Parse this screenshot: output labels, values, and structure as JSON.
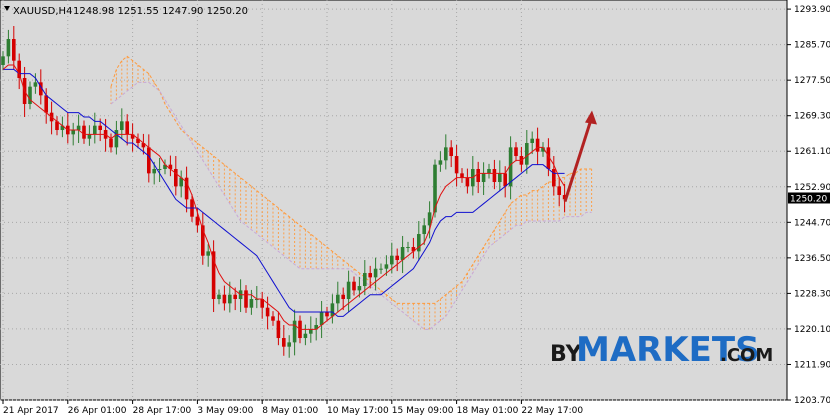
{
  "header": {
    "symbol_title": "XAUUSD,H4",
    "ohlc": "1248.98 1251.55 1247.90 1250.20"
  },
  "watermark": {
    "by": "BY",
    "main": "MARKETS",
    "suffix": ".COM"
  },
  "colors": {
    "background": "#d9d9d9",
    "bull_candle": "#2e7d32",
    "bear_candle": "#d50000",
    "tenkan": "#e01010",
    "kijun": "#1010d0",
    "cloud_span_a": "#ff9a3c",
    "cloud_span_b": "#c8a8d8",
    "arrow": "#b22222",
    "watermark_blue": "#1e6cc4"
  },
  "chart_data": {
    "type": "candlestick",
    "instrument": "XAUUSD",
    "timeframe": "H4",
    "current_price": "1250.20",
    "y_ticks": [
      "1293.90",
      "1285.70",
      "1277.50",
      "1269.30",
      "1261.10",
      "1252.90",
      "1244.70",
      "1236.50",
      "1228.30",
      "1220.10",
      "1211.90",
      "1203.70"
    ],
    "ylim": [
      1203.7,
      1296.0
    ],
    "x_ticks": [
      "21 Apr 2017",
      "26 Apr 01:00",
      "28 Apr 17:00",
      "3 May 09:00",
      "8 May 01:00",
      "10 May 17:00",
      "15 May 09:00",
      "18 May 01:00",
      "22 May 17:00"
    ],
    "close": [
      1283,
      1287,
      1282,
      1278,
      1272,
      1276,
      1277,
      1274,
      1270,
      1268,
      1266,
      1267,
      1265,
      1266,
      1267,
      1264,
      1265,
      1267,
      1266,
      1264,
      1262,
      1266,
      1268,
      1265,
      1264,
      1263,
      1262,
      1256,
      1257,
      1257,
      1258,
      1257,
      1253,
      1255,
      1250,
      1246,
      1244,
      1237,
      1238,
      1227,
      1228,
      1226,
      1228,
      1227,
      1229,
      1225,
      1227,
      1227,
      1225,
      1223,
      1222,
      1218,
      1216,
      1217,
      1222,
      1218,
      1219,
      1220,
      1221,
      1224,
      1223,
      1226,
      1228,
      1227,
      1231,
      1229,
      1230,
      1233,
      1232,
      1234,
      1234,
      1235,
      1237,
      1236,
      1239,
      1239,
      1238,
      1242,
      1244,
      1247,
      1258,
      1259,
      1262,
      1260,
      1256,
      1255,
      1253,
      1257,
      1254,
      1256,
      1257,
      1254,
      1256,
      1253,
      1262,
      1260,
      1258,
      1263,
      1264,
      1261,
      1262,
      1257,
      1253,
      1251,
      1250
    ],
    "tenkan_sen": [
      1280,
      1281,
      1281,
      1279,
      1275,
      1273,
      1272,
      1271,
      1270,
      1269,
      1268,
      1267,
      1266,
      1266,
      1266,
      1265,
      1265,
      1265,
      1265,
      1265,
      1264,
      1265,
      1265,
      1265,
      1265,
      1264,
      1263,
      1262,
      1261,
      1260,
      1258,
      1257,
      1256,
      1255,
      1254,
      1251,
      1247,
      1243,
      1240,
      1236,
      1233,
      1231,
      1230,
      1229,
      1228,
      1228,
      1228,
      1227,
      1227,
      1226,
      1225,
      1224,
      1222,
      1221,
      1221,
      1220,
      1220,
      1220,
      1220,
      1221,
      1222,
      1223,
      1224,
      1225,
      1226,
      1227,
      1228,
      1229,
      1230,
      1231,
      1232,
      1233,
      1234,
      1235,
      1236,
      1237,
      1238,
      1239,
      1240,
      1243,
      1248,
      1251,
      1253,
      1254,
      1255,
      1255,
      1255,
      1255,
      1256,
      1256,
      1256,
      1256,
      1256,
      1256,
      1258,
      1259,
      1259,
      1260,
      1261,
      1262,
      1262,
      1260,
      1258,
      1255,
      1253
    ],
    "kijun_sen": [
      1280,
      1280,
      1280,
      1279,
      1279,
      1279,
      1278,
      1276,
      1274,
      1273,
      1272,
      1271,
      1270,
      1270,
      1270,
      1269,
      1269,
      1268,
      1268,
      1267,
      1266,
      1265,
      1264,
      1263,
      1263,
      1262,
      1261,
      1260,
      1258,
      1256,
      1254,
      1252,
      1250,
      1249,
      1248,
      1248,
      1248,
      1247,
      1246,
      1245,
      1244,
      1243,
      1242,
      1241,
      1240,
      1239,
      1238,
      1237,
      1235,
      1233,
      1231,
      1229,
      1227,
      1225,
      1224,
      1224,
      1224,
      1224,
      1224,
      1224,
      1224,
      1224,
      1223,
      1223,
      1224,
      1225,
      1226,
      1227,
      1228,
      1228,
      1228,
      1229,
      1230,
      1231,
      1232,
      1233,
      1234,
      1236,
      1238,
      1240,
      1243,
      1245,
      1246,
      1246,
      1247,
      1247,
      1247,
      1247,
      1248,
      1249,
      1250,
      1251,
      1252,
      1253,
      1254,
      1255,
      1256,
      1257,
      1258,
      1258,
      1258,
      1257,
      1256,
      1256,
      1256
    ],
    "senkou_span_a": [
      1276,
      1280,
      1282,
      1283,
      1282,
      1281,
      1280,
      1279,
      1277,
      1275,
      1272,
      1270,
      1268,
      1266,
      1265,
      1264,
      1263,
      1262,
      1261,
      1260,
      1259,
      1258,
      1257,
      1256,
      1255,
      1254,
      1253,
      1252,
      1251,
      1250,
      1249,
      1248,
      1247,
      1246,
      1245,
      1244,
      1243,
      1242,
      1241,
      1240,
      1239,
      1238,
      1237,
      1236,
      1235,
      1234,
      1233,
      1232,
      1231,
      1230,
      1229,
      1228,
      1227,
      1226,
      1226,
      1226,
      1226,
      1226,
      1226,
      1226,
      1226,
      1227,
      1228,
      1229,
      1230,
      1231,
      1233,
      1235,
      1237,
      1239,
      1241,
      1243,
      1245,
      1247,
      1249,
      1250,
      1251,
      1251,
      1252,
      1252,
      1253,
      1254,
      1254,
      1255,
      1255,
      1256,
      1256,
      1257,
      1257,
      1257
    ],
    "senkou_span_b": [
      1272,
      1273,
      1274,
      1275,
      1276,
      1277,
      1277,
      1277,
      1276,
      1275,
      1273,
      1271,
      1269,
      1267,
      1265,
      1263,
      1261,
      1259,
      1257,
      1255,
      1253,
      1251,
      1249,
      1247,
      1245,
      1244,
      1243,
      1242,
      1241,
      1240,
      1239,
      1238,
      1237,
      1236,
      1235,
      1234,
      1234,
      1234,
      1234,
      1234,
      1234,
      1234,
      1234,
      1234,
      1234,
      1233,
      1232,
      1231,
      1230,
      1229,
      1228,
      1227,
      1226,
      1225,
      1224,
      1223,
      1222,
      1221,
      1220,
      1220,
      1221,
      1222,
      1223,
      1225,
      1227,
      1229,
      1231,
      1233,
      1235,
      1237,
      1239,
      1240,
      1241,
      1242,
      1243,
      1244,
      1244,
      1245,
      1245,
      1245,
      1245,
      1245,
      1245,
      1245,
      1246,
      1246,
      1246,
      1246,
      1247,
      1247
    ],
    "forecast_arrow": {
      "from_price": 1249.5,
      "to_price": 1270.5
    }
  }
}
